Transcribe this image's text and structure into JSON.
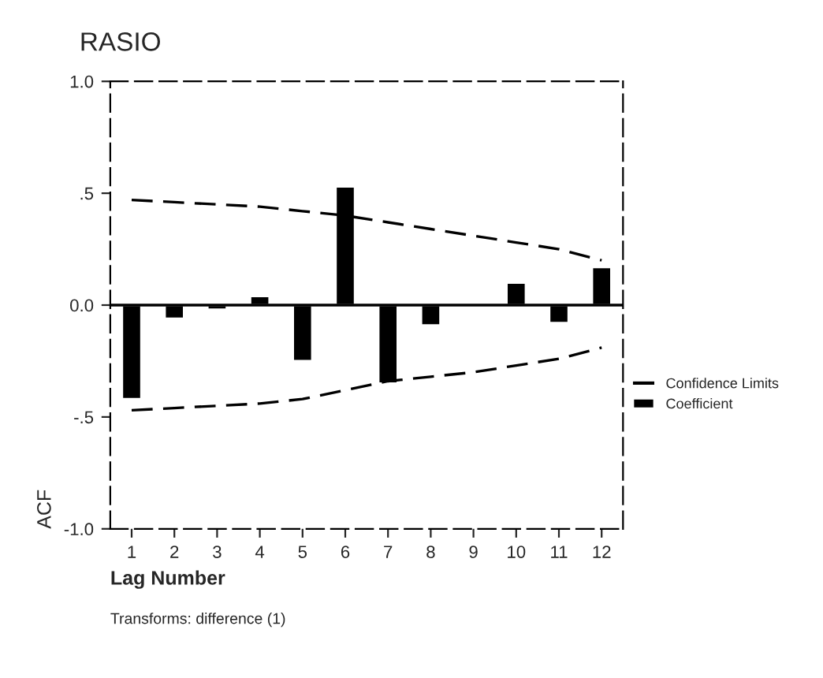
{
  "chart_data": {
    "type": "bar",
    "title": "RASIO",
    "xlabel": "Lag Number",
    "ylabel": "ACF",
    "annotations": [
      "Transforms: difference (1)"
    ],
    "categories": [
      "1",
      "2",
      "3",
      "4",
      "5",
      "6",
      "7",
      "8",
      "9",
      "10",
      "11",
      "12"
    ],
    "series": [
      {
        "name": "Confidence Limits",
        "type": "line",
        "color": "#000000",
        "line_style": "dashed",
        "values": [
          0.47,
          0.46,
          0.45,
          0.44,
          0.42,
          0.4,
          0.37,
          0.34,
          0.31,
          0.28,
          0.25,
          0.2
        ]
      },
      {
        "type": "line",
        "color": "#000000",
        "line_style": "dashed",
        "values": [
          -0.47,
          -0.46,
          -0.45,
          -0.44,
          -0.42,
          -0.38,
          -0.34,
          -0.32,
          -0.3,
          -0.27,
          -0.24,
          -0.19
        ]
      },
      {
        "name": "Coefficient",
        "color": "#000000",
        "values": [
          -0.42,
          -0.06,
          -0.02,
          0.04,
          -0.25,
          0.53,
          -0.35,
          -0.09,
          0.01,
          0.1,
          -0.08,
          0.17
        ]
      }
    ],
    "ylim": [
      -1,
      1
    ],
    "yticks": [
      {
        "value": -1,
        "label": "-1.0"
      },
      {
        "value": -0.5,
        "label": "-.5"
      },
      {
        "value": 0,
        "label": "0.0"
      },
      {
        "value": 0.5,
        "label": ".5"
      },
      {
        "value": 1,
        "label": "1.0"
      }
    ],
    "ref_lines": [
      {
        "axis": "y",
        "value": 0
      }
    ],
    "legend": "right",
    "grid": false
  }
}
